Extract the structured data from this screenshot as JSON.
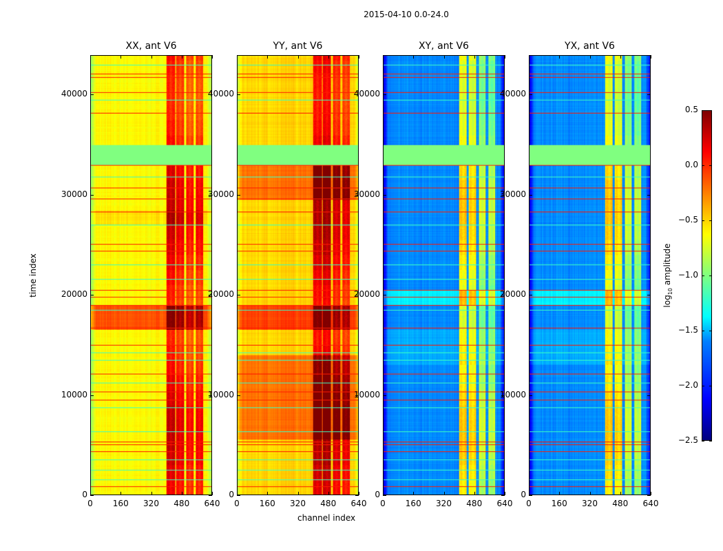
{
  "figure_title": "2015-04-10 0.0-24.0",
  "chart_data": {
    "type": "heatmap",
    "title": "2015-04-10 0.0-24.0",
    "xlabel": "channel index",
    "ylabel": "time index",
    "xlim": [
      0,
      640
    ],
    "ylim": [
      0,
      43920
    ],
    "xticks": [
      "0",
      "160",
      "320",
      "480",
      "640"
    ],
    "xtick_values": [
      0,
      160,
      320,
      480,
      640
    ],
    "yticks": [
      "0",
      "10000",
      "20000",
      "30000",
      "40000"
    ],
    "ytick_values": [
      0,
      10000,
      20000,
      30000,
      40000
    ],
    "colorbar": {
      "label_prefix": "log",
      "label_sub": "10",
      "label_suffix": " amplitude",
      "range": [
        -2.5,
        0.5
      ],
      "ticks": [
        "0.5",
        "0.0",
        "−0.5",
        "−1.0",
        "−1.5",
        "−2.0",
        "−2.5"
      ],
      "tick_values": [
        0.5,
        0.0,
        -0.5,
        -1.0,
        -1.5,
        -2.0,
        -2.5
      ],
      "colormap": "jet"
    },
    "flag_band": [
      33000,
      35000,
      -1.0
    ],
    "red_lines": [
      42100,
      41800,
      40300,
      38200,
      33000,
      30700,
      29600,
      28300,
      25100,
      24400,
      20500,
      19800,
      19000,
      16700,
      15000,
      12100,
      10300,
      9500,
      5300,
      5000,
      4300,
      800
    ],
    "cyan_lines": [
      43000,
      39500,
      31800,
      27000,
      23000,
      21600,
      18500,
      14200,
      13500,
      11200,
      8700,
      6300,
      3500,
      2500,
      1500
    ],
    "panels": [
      {
        "title": "XX, ant V6",
        "base": -0.62,
        "edge": -0.9,
        "rfi_columns": [
          [
            400,
            445,
            0.15
          ],
          [
            450,
            495,
            0.05
          ],
          [
            505,
            545,
            -0.05
          ],
          [
            555,
            595,
            0.0
          ]
        ],
        "time_segments": [
          [
            16500,
            19000,
            0.5
          ],
          [
            27000,
            28500,
            0.08
          ]
        ]
      },
      {
        "title": "YY, ant V6",
        "base": -0.5,
        "edge": -0.75,
        "rfi_columns": [
          [
            400,
            445,
            0.2
          ],
          [
            450,
            495,
            0.25
          ],
          [
            505,
            545,
            0.1
          ],
          [
            555,
            595,
            0.05
          ]
        ],
        "time_segments": [
          [
            5500,
            14000,
            0.3
          ],
          [
            29500,
            33000,
            0.3
          ],
          [
            16500,
            19000,
            0.45
          ]
        ]
      },
      {
        "title": "XY, ant V6",
        "base": -1.72,
        "edge": -2.2,
        "rfi_columns": [
          [
            400,
            440,
            -0.6
          ],
          [
            450,
            490,
            -0.65
          ],
          [
            505,
            540,
            -0.9
          ],
          [
            555,
            590,
            -0.95
          ]
        ],
        "time_segments": [
          [
            19000,
            20500,
            0.3
          ],
          [
            13000,
            16500,
            0.1
          ]
        ]
      },
      {
        "title": "YX, ant V6",
        "base": -1.72,
        "edge": -2.2,
        "rfi_columns": [
          [
            400,
            440,
            -0.6
          ],
          [
            450,
            490,
            -0.65
          ],
          [
            505,
            540,
            -0.9
          ],
          [
            555,
            590,
            -0.95
          ]
        ],
        "time_segments": [
          [
            19000,
            20500,
            0.3
          ],
          [
            13000,
            16500,
            0.1
          ]
        ]
      }
    ]
  }
}
